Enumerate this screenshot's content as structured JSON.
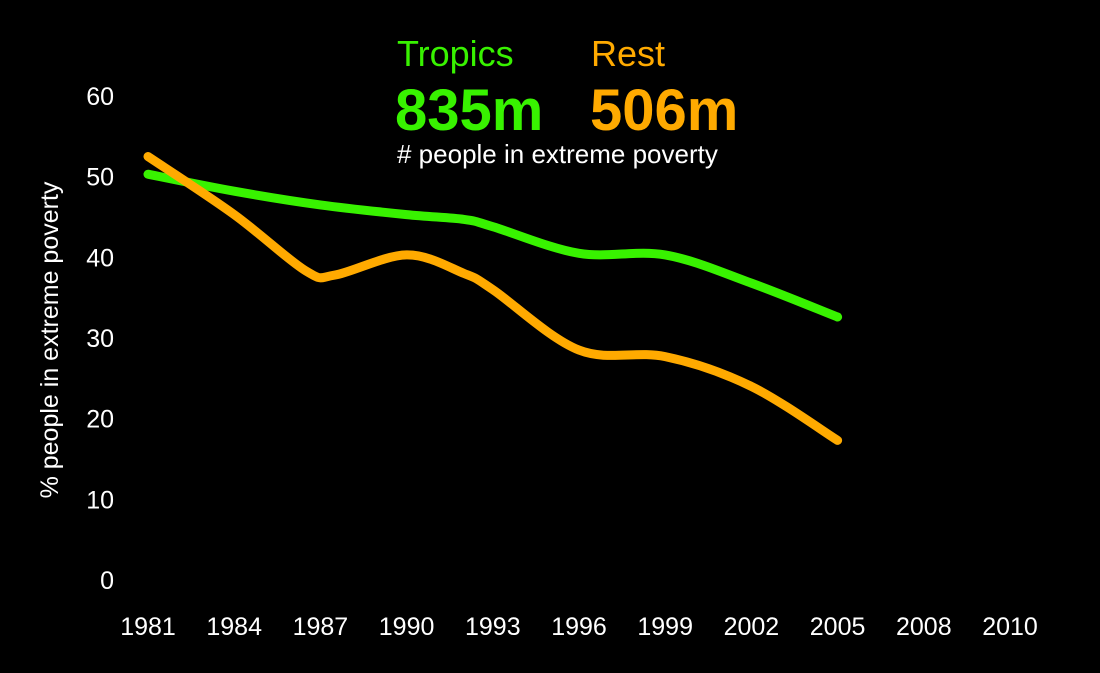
{
  "chart_data": {
    "type": "line",
    "title": "",
    "subtitle": "# people in extreme poverty",
    "xlabel": "",
    "ylabel": "% people in extreme poverty",
    "ylim": [
      0,
      60
    ],
    "yticks": [
      "0",
      "10",
      "20",
      "30",
      "40",
      "50",
      "60"
    ],
    "categories": [
      "1981",
      "1984",
      "1987",
      "1990",
      "1993",
      "1996",
      "1999",
      "2002",
      "2005",
      "2008",
      "2010"
    ],
    "grid": false,
    "legend": "top-center",
    "series": [
      {
        "name": "Tropics",
        "total": "835m",
        "color": "#38f200",
        "x": [
          1981,
          1984,
          1987,
          1990,
          1992,
          1993,
          1996,
          1999,
          2002,
          2005
        ],
        "values": [
          50.3,
          48.2,
          46.5,
          45.3,
          44.7,
          43.8,
          40.5,
          40.3,
          36.8,
          32.6
        ]
      },
      {
        "name": "Rest",
        "total": "506m",
        "color": "#ffaa00",
        "x": [
          1981,
          1984,
          1986.5,
          1987.5,
          1990,
          1992,
          1993,
          1996,
          1999,
          2002,
          2005
        ],
        "values": [
          52.5,
          45.3,
          38.3,
          37.8,
          40.3,
          38.0,
          36.0,
          28.5,
          27.7,
          24.0,
          17.3
        ]
      }
    ]
  }
}
